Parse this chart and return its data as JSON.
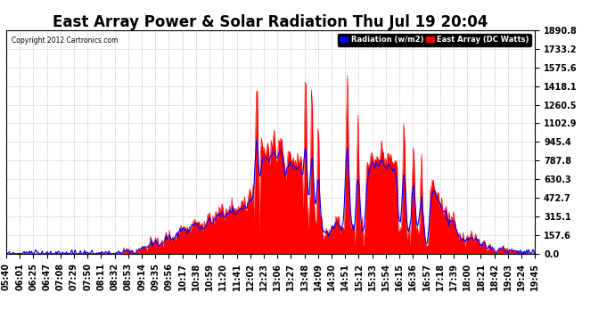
{
  "title": "East Array Power & Solar Radiation Thu Jul 19 20:04",
  "copyright": "Copyright 2012 Cartronics.com",
  "legend_radiation": "Radiation (w/m2)",
  "legend_array": "East Array (DC Watts)",
  "ylabel_right_ticks": [
    0.0,
    157.6,
    315.1,
    472.7,
    630.3,
    787.8,
    945.4,
    1102.9,
    1260.5,
    1418.1,
    1575.6,
    1733.2,
    1890.8
  ],
  "ymax": 1890.8,
  "ymin": 0.0,
  "bg_color": "#ffffff",
  "plot_bg_color": "#ffffff",
  "grid_color": "#aaaaaa",
  "radiation_fill_color": "#ff0000",
  "array_line_color": "#0000ff",
  "title_fontsize": 12,
  "tick_fontsize": 7,
  "time_labels": [
    "05:40",
    "06:01",
    "06:25",
    "06:47",
    "07:08",
    "07:29",
    "07:50",
    "08:11",
    "08:32",
    "08:53",
    "09:14",
    "09:35",
    "09:56",
    "10:17",
    "10:38",
    "10:59",
    "11:20",
    "11:41",
    "12:02",
    "12:23",
    "13:06",
    "13:27",
    "13:48",
    "14:09",
    "14:30",
    "14:51",
    "15:12",
    "15:33",
    "15:54",
    "16:15",
    "16:36",
    "16:57",
    "17:18",
    "17:39",
    "18:00",
    "18:21",
    "18:42",
    "19:03",
    "19:24",
    "19:45"
  ]
}
